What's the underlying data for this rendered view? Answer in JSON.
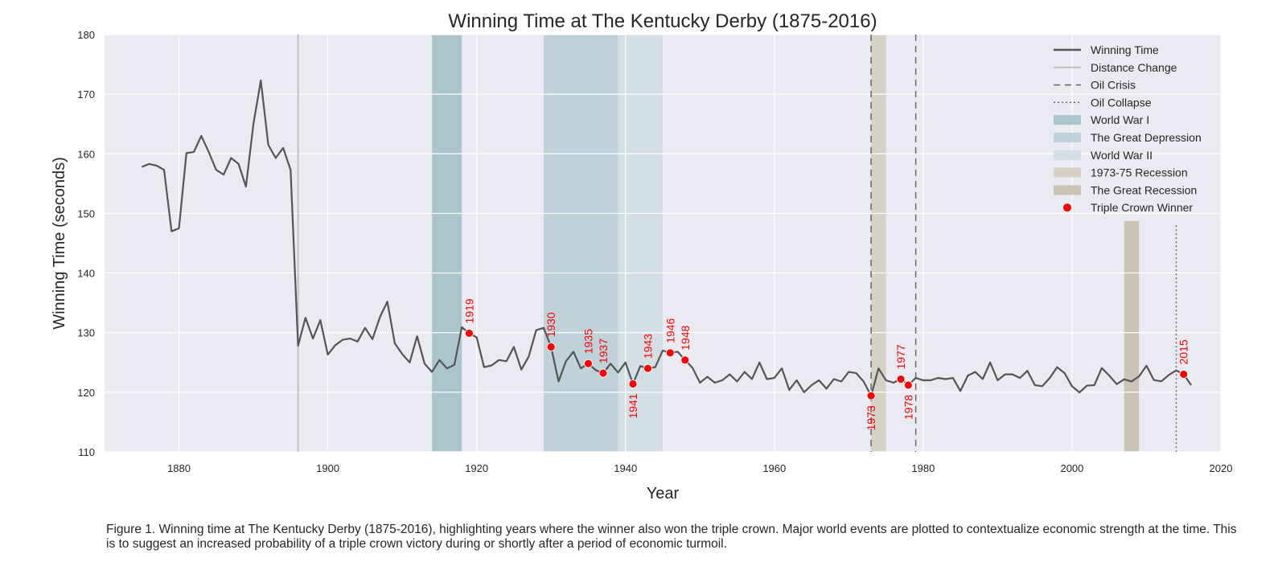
{
  "chart_data": {
    "type": "line",
    "title": "Winning Time at The Kentucky Derby (1875-2016)",
    "xlabel": "Year",
    "ylabel": "Winning Time (seconds)",
    "xlim": [
      1870,
      2020
    ],
    "ylim": [
      110,
      180
    ],
    "x_ticks": [
      1880,
      1900,
      1920,
      1940,
      1960,
      1980,
      2000,
      2020
    ],
    "y_ticks": [
      110,
      120,
      130,
      140,
      150,
      160,
      170,
      180
    ],
    "grid": true,
    "legend_position": "top-right",
    "colors": {
      "background": "#eaeaf2",
      "grid": "#ffffff",
      "winning_line": "#555555",
      "distance_line": "#c0c0c0",
      "event_line": "#666666",
      "wwi": "#aac5cc",
      "depression": "#bfd1d9",
      "wwii": "#d3dee5",
      "recession_1973": "#d6d1c4",
      "great_recession": "#cbc4b3",
      "triple_crown": "#ff0000"
    },
    "legend": [
      {
        "label": "Winning Time",
        "kind": "line",
        "color": "#555555",
        "dash": "none",
        "width": 2.5
      },
      {
        "label": "Distance Change",
        "kind": "line",
        "color": "#c0c0c0",
        "dash": "none",
        "width": 2
      },
      {
        "label": "Oil Crisis",
        "kind": "line",
        "color": "#666666",
        "dash": "8,6",
        "width": 1.5
      },
      {
        "label": "Oil Collapse",
        "kind": "line",
        "color": "#666666",
        "dash": "2,3",
        "width": 1.5
      },
      {
        "label": "World War I",
        "kind": "patch",
        "color": "#aac5cc"
      },
      {
        "label": "The Great Depression",
        "kind": "patch",
        "color": "#bfd1d9"
      },
      {
        "label": "World War II",
        "kind": "patch",
        "color": "#d3dee5"
      },
      {
        "label": "1973-75 Recession",
        "kind": "patch",
        "color": "#d6d1c4"
      },
      {
        "label": "The Great Recession",
        "kind": "patch",
        "color": "#cbc4b3"
      },
      {
        "label": "Triple Crown Winner",
        "kind": "marker",
        "color": "#ff0000"
      }
    ],
    "spans": [
      {
        "name": "World War I",
        "x0": 1914,
        "x1": 1918,
        "ymax": 180,
        "color": "#aac5cc"
      },
      {
        "name": "The Great Depression",
        "x0": 1929,
        "x1": 1939,
        "ymax": 180,
        "color": "#bfd1d9"
      },
      {
        "name": "World War II",
        "x0": 1939,
        "x1": 1945,
        "ymax": 180,
        "color": "#d3dee5"
      },
      {
        "name": "1973-75 Recession",
        "x0": 1973,
        "x1": 1975,
        "ymax": 180,
        "color": "#d6d1c4"
      },
      {
        "name": "The Great Recession",
        "x0": 2007,
        "x1": 2009,
        "ymax": 148.7,
        "color": "#cbc4b3"
      }
    ],
    "vlines": [
      {
        "name": "Distance Change",
        "x": 1896,
        "ymin": 110,
        "ymax": 180,
        "color": "#c0c0c0",
        "dash": "none",
        "width": 2
      },
      {
        "name": "Oil Crisis",
        "x": 1973,
        "ymin": 110,
        "ymax": 180,
        "color": "#666666",
        "dash": "8,6",
        "width": 1.5
      },
      {
        "name": "Oil Crisis",
        "x": 1979,
        "ymin": 110,
        "ymax": 180,
        "color": "#666666",
        "dash": "8,6",
        "width": 1.5
      },
      {
        "name": "Oil Collapse",
        "x": 2014,
        "ymin": 110,
        "ymax": 148,
        "color": "#666666",
        "dash": "2,3",
        "width": 1.5
      }
    ],
    "series": [
      {
        "name": "Winning Time",
        "x": [
          1875,
          1876,
          1877,
          1878,
          1879,
          1880,
          1881,
          1882,
          1883,
          1884,
          1885,
          1886,
          1887,
          1888,
          1889,
          1890,
          1891,
          1892,
          1893,
          1894,
          1895,
          1896,
          1897,
          1898,
          1899,
          1900,
          1901,
          1902,
          1903,
          1904,
          1905,
          1906,
          1907,
          1908,
          1909,
          1910,
          1911,
          1912,
          1913,
          1914,
          1915,
          1916,
          1917,
          1918,
          1919,
          1920,
          1921,
          1922,
          1923,
          1924,
          1925,
          1926,
          1927,
          1928,
          1929,
          1930,
          1931,
          1932,
          1933,
          1934,
          1935,
          1936,
          1937,
          1938,
          1939,
          1940,
          1941,
          1942,
          1943,
          1944,
          1945,
          1946,
          1947,
          1948,
          1949,
          1950,
          1951,
          1952,
          1953,
          1954,
          1955,
          1956,
          1957,
          1958,
          1959,
          1960,
          1961,
          1962,
          1963,
          1964,
          1965,
          1966,
          1967,
          1968,
          1969,
          1970,
          1971,
          1972,
          1973,
          1974,
          1975,
          1976,
          1977,
          1978,
          1979,
          1980,
          1981,
          1982,
          1983,
          1984,
          1985,
          1986,
          1987,
          1988,
          1989,
          1990,
          1991,
          1992,
          1993,
          1994,
          1995,
          1996,
          1997,
          1998,
          1999,
          2000,
          2001,
          2002,
          2003,
          2004,
          2005,
          2006,
          2007,
          2008,
          2009,
          2010,
          2011,
          2012,
          2013,
          2014,
          2015,
          2016
        ],
        "y": [
          157.8,
          158.3,
          158.0,
          157.3,
          147.0,
          147.5,
          160.1,
          160.3,
          163.0,
          160.3,
          157.3,
          156.5,
          159.3,
          158.3,
          154.5,
          165.0,
          172.3,
          161.5,
          159.3,
          161.0,
          157.3,
          127.8,
          132.5,
          129.0,
          132.1,
          126.3,
          127.9,
          128.8,
          129.0,
          128.5,
          130.8,
          128.9,
          132.6,
          135.2,
          128.2,
          126.4,
          125.0,
          129.4,
          124.8,
          123.4,
          125.4,
          124.0,
          124.6,
          130.9,
          129.9,
          129.2,
          124.2,
          124.5,
          125.4,
          125.2,
          127.6,
          123.8,
          126.0,
          130.4,
          130.8,
          127.6,
          121.8,
          125.2,
          126.8,
          124.0,
          124.8,
          123.7,
          123.2,
          124.8,
          123.3,
          125.0,
          121.4,
          124.4,
          124.0,
          124.2,
          127.0,
          126.6,
          126.8,
          125.4,
          124.1,
          121.6,
          122.6,
          121.6,
          122.0,
          123.0,
          121.8,
          123.4,
          122.2,
          125.0,
          122.2,
          122.4,
          124.0,
          120.4,
          122.0,
          120.0,
          121.2,
          122.0,
          120.6,
          122.2,
          121.8,
          123.4,
          123.2,
          121.8,
          119.4,
          124.0,
          122.0,
          121.6,
          122.2,
          121.2,
          122.4,
          122.0,
          122.0,
          122.4,
          122.2,
          122.4,
          120.2,
          122.8,
          123.4,
          122.2,
          125.0,
          122.0,
          123.0,
          123.0,
          122.4,
          123.6,
          121.2,
          121.0,
          122.4,
          124.2,
          123.2,
          121.0,
          119.97,
          121.1,
          121.2,
          124.06,
          122.8,
          121.36,
          122.17,
          121.82,
          122.66,
          124.45,
          122.04,
          121.83,
          122.89,
          123.66,
          123.02,
          121.19
        ]
      }
    ],
    "triple_crown": [
      {
        "year": 1919,
        "time": 129.9,
        "label": "1919",
        "label_pos": "above"
      },
      {
        "year": 1930,
        "time": 127.6,
        "label": "1930",
        "label_pos": "above"
      },
      {
        "year": 1935,
        "time": 124.8,
        "label": "1935",
        "label_pos": "above"
      },
      {
        "year": 1937,
        "time": 123.2,
        "label": "1937",
        "label_pos": "above"
      },
      {
        "year": 1941,
        "time": 121.4,
        "label": "1941",
        "label_pos": "below"
      },
      {
        "year": 1943,
        "time": 124.0,
        "label": "1943",
        "label_pos": "above"
      },
      {
        "year": 1946,
        "time": 126.6,
        "label": "1946",
        "label_pos": "above"
      },
      {
        "year": 1948,
        "time": 125.4,
        "label": "1948",
        "label_pos": "above"
      },
      {
        "year": 1973,
        "time": 119.4,
        "label": "1973",
        "label_pos": "below"
      },
      {
        "year": 1977,
        "time": 122.2,
        "label": "1977",
        "label_pos": "above"
      },
      {
        "year": 1978,
        "time": 121.2,
        "label": "1978",
        "label_pos": "below"
      },
      {
        "year": 2015,
        "time": 123.02,
        "label": "2015",
        "label_pos": "above"
      }
    ]
  },
  "caption": "Figure 1. Winning time at The Kentucky Derby (1875-2016), highlighting years where the winner also won the triple crown. Major world events are plotted to contextualize economic strength at the time. This is to suggest an increased probability of a triple crown victory during or shortly after a period of economic turmoil."
}
